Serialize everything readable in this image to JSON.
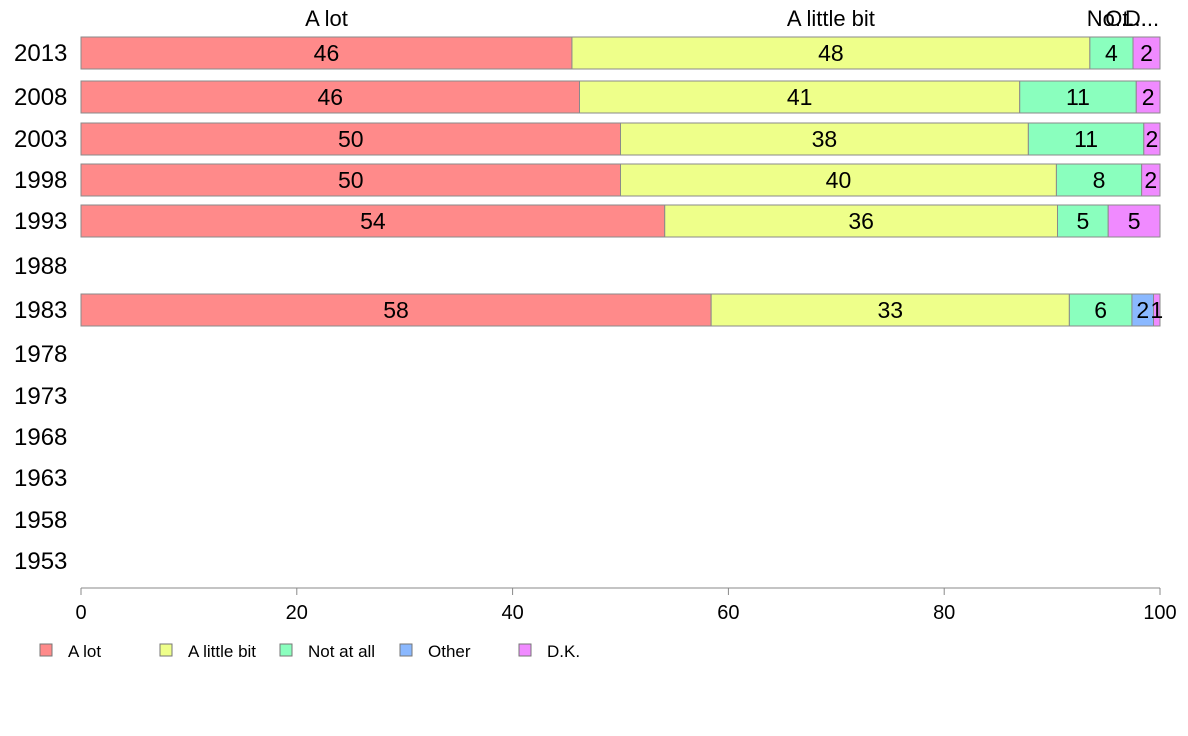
{
  "chart_data": {
    "type": "bar",
    "orientation": "horizontal",
    "stacked": true,
    "title": "",
    "xlabel": "",
    "ylabel": "",
    "xlim": [
      0,
      100
    ],
    "x_ticks": [
      "0",
      "20",
      "40",
      "60",
      "80",
      "100"
    ],
    "categories": [
      "2013",
      "2008",
      "2003",
      "1998",
      "1993",
      "1988",
      "1983",
      "1978",
      "1973",
      "1968",
      "1963",
      "1958",
      "1953"
    ],
    "top_labels": [
      "A lot",
      "A little bit",
      "No...",
      "Ot...",
      "D..."
    ],
    "series": [
      {
        "name": "A lot",
        "color": "#FF8A8A",
        "values": [
          45.5,
          46.2,
          50,
          50,
          54.1,
          null,
          58.4,
          null,
          null,
          null,
          null,
          null,
          null
        ]
      },
      {
        "name": "A little bit",
        "color": "#EEFF8A",
        "values": [
          48,
          40.8,
          37.8,
          40.4,
          36.4,
          null,
          33.2,
          null,
          null,
          null,
          null,
          null,
          null
        ]
      },
      {
        "name": "Not at all",
        "color": "#8AFFBE",
        "values": [
          4,
          10.8,
          10.7,
          7.9,
          4.7,
          null,
          5.8,
          null,
          null,
          null,
          null,
          null,
          null
        ]
      },
      {
        "name": "Other",
        "color": "#8AB8FF",
        "values": [
          0,
          0,
          0,
          0,
          0,
          null,
          2,
          null,
          null,
          null,
          null,
          null,
          null
        ]
      },
      {
        "name": "D.K.",
        "color": "#F08AFF",
        "values": [
          2.5,
          2.2,
          1.5,
          1.7,
          4.8,
          null,
          0.6,
          null,
          null,
          null,
          null,
          null,
          null
        ]
      }
    ],
    "data_labels": [
      [
        "46",
        "48",
        "4",
        "",
        "2"
      ],
      [
        "46",
        "41",
        "11",
        "",
        "2"
      ],
      [
        "50",
        "38",
        "11",
        "",
        "2"
      ],
      [
        "50",
        "40",
        "8",
        "",
        "2"
      ],
      [
        "54",
        "36",
        "5",
        "",
        "5"
      ],
      [
        "",
        "",
        "",
        "",
        ""
      ],
      [
        "58",
        "33",
        "6",
        "2",
        "1"
      ],
      [
        "",
        "",
        "",
        "",
        ""
      ],
      [
        "",
        "",
        "",
        "",
        ""
      ],
      [
        "",
        "",
        "",
        "",
        ""
      ],
      [
        "",
        "",
        "",
        "",
        ""
      ],
      [
        "",
        "",
        "",
        "",
        ""
      ],
      [
        "",
        "",
        "",
        "",
        ""
      ]
    ],
    "legend": {
      "position": "bottom-left",
      "entries": [
        "A lot",
        "A little bit",
        "Not at all",
        "Other",
        "D.K."
      ]
    },
    "grid": false
  }
}
